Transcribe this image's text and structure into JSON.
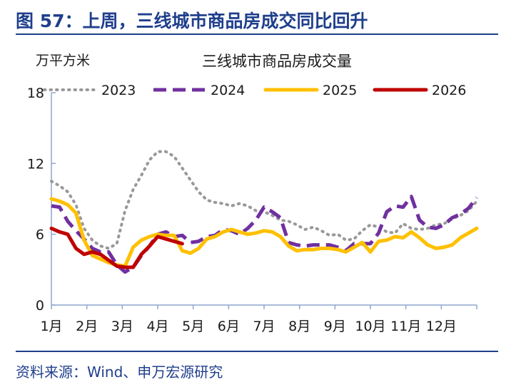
{
  "figure": {
    "title": "图 57：上周，三线城市商品房成交同比回升",
    "source": "资料来源：Wind、申万宏源研究"
  },
  "chart_data": {
    "type": "line",
    "title": "三线城市商品房成交量",
    "ylabel": "万平方米",
    "xlabel": "",
    "ylim": [
      0,
      18
    ],
    "yticks": [
      "0",
      "6",
      "12",
      "18"
    ],
    "x_unit": "week (1–53)",
    "month_ticks": [
      "1月",
      "2月",
      "3月",
      "4月",
      "5月",
      "6月",
      "7月",
      "8月",
      "9月",
      "10月",
      "11月",
      "12月"
    ],
    "legend_position": "top",
    "grid": false,
    "series": [
      {
        "name": "2023",
        "color": "#999999",
        "style": "dotted",
        "x": [
          1,
          2,
          3,
          4,
          5,
          6,
          7,
          8,
          9,
          10,
          11,
          12,
          13,
          14,
          15,
          16,
          17,
          18,
          19,
          20,
          21,
          22,
          23,
          24,
          25,
          26,
          27,
          28,
          29,
          30,
          31,
          32,
          33,
          34,
          35,
          36,
          37,
          38,
          39,
          40,
          41,
          42,
          43,
          44,
          45,
          46,
          47,
          48,
          49,
          50,
          51,
          52,
          53
        ],
        "values": [
          10.5,
          10.1,
          9.6,
          8.5,
          6.5,
          5.5,
          5,
          4.8,
          5.2,
          8,
          9.8,
          11,
          12.3,
          13,
          13,
          12.6,
          11.6,
          10.6,
          9.6,
          8.9,
          8.7,
          8.6,
          8.4,
          8.6,
          8.4,
          8,
          7.9,
          7.6,
          7.2,
          7.1,
          6.8,
          6.4,
          6.6,
          6.3,
          5.9,
          6,
          5.5,
          5.6,
          6.3,
          6.8,
          6.6,
          6.2,
          6.1,
          6.9,
          6.5,
          6.4,
          6.5,
          6.8,
          6.9,
          7.3,
          7.6,
          8,
          8.8
        ]
      },
      {
        "name": "2024",
        "color": "#7030a0",
        "style": "dashed",
        "x": [
          1,
          2,
          3,
          4,
          5,
          6,
          7,
          8,
          9,
          10,
          11,
          12,
          13,
          14,
          15,
          16,
          17,
          18,
          19,
          20,
          21,
          22,
          23,
          24,
          25,
          26,
          27,
          28,
          29,
          30,
          31,
          32,
          33,
          34,
          35,
          36,
          37,
          38,
          39,
          40,
          41,
          42,
          43,
          44,
          45,
          46,
          47,
          48,
          49,
          50,
          51,
          52,
          53
        ],
        "values": [
          8.4,
          8.3,
          7.1,
          6.3,
          5.6,
          4.8,
          4.5,
          4.5,
          3.4,
          2.8,
          3.2,
          4.2,
          5,
          6,
          6.2,
          5.8,
          5.9,
          5.3,
          5.4,
          5.8,
          5.9,
          6.4,
          6.3,
          6.0,
          6.5,
          7.2,
          8.3,
          7.9,
          7.4,
          5.3,
          5.1,
          5,
          5.1,
          5.1,
          5.1,
          4.9,
          4.6,
          5.2,
          5.2,
          5.2,
          6.1,
          7.9,
          8.4,
          8.3,
          9.2,
          7.2,
          6.6,
          6.5,
          6.8,
          7.4,
          7.7,
          8.2,
          9.1
        ]
      },
      {
        "name": "2025",
        "color": "#ffc000",
        "style": "solid",
        "x": [
          1,
          2,
          3,
          4,
          5,
          6,
          7,
          8,
          9,
          10,
          11,
          12,
          13,
          14,
          15,
          16,
          17,
          18,
          19,
          20,
          21,
          22,
          23,
          24,
          25,
          26,
          27,
          28,
          29,
          30,
          31,
          32,
          33,
          34,
          35,
          36,
          37,
          38,
          39,
          40,
          41,
          42,
          43,
          44,
          45,
          46,
          47,
          48,
          49,
          50,
          51,
          52,
          53
        ],
        "values": [
          9,
          8.8,
          8.5,
          7.8,
          5.5,
          4.2,
          3.9,
          3.6,
          3.4,
          3.3,
          4.9,
          5.5,
          5.8,
          6.0,
          5.9,
          5.9,
          4.6,
          4.4,
          4.8,
          5.6,
          5.8,
          6.2,
          6.4,
          6.2,
          6.0,
          6.1,
          6.3,
          6.2,
          5.8,
          5.0,
          4.6,
          4.7,
          4.7,
          4.8,
          4.8,
          4.7,
          4.5,
          4.9,
          5.3,
          4.5,
          5.4,
          5.5,
          5.8,
          5.7,
          6.2,
          5.7,
          5.1,
          4.8,
          4.9,
          5.1,
          5.7,
          6.1,
          6.5
        ]
      },
      {
        "name": "2026",
        "color": "#c00000",
        "style": "solid",
        "x": [
          1,
          2,
          3,
          4,
          5,
          6,
          7,
          8,
          9,
          10,
          11,
          12,
          13,
          14,
          15,
          16,
          17
        ],
        "values": [
          6.5,
          6.2,
          6.0,
          4.8,
          4.3,
          4.5,
          4.3,
          3.8,
          3.3,
          3.2,
          3.2,
          4.3,
          5,
          5.8,
          5.6,
          5.4,
          5.2
        ]
      }
    ]
  }
}
